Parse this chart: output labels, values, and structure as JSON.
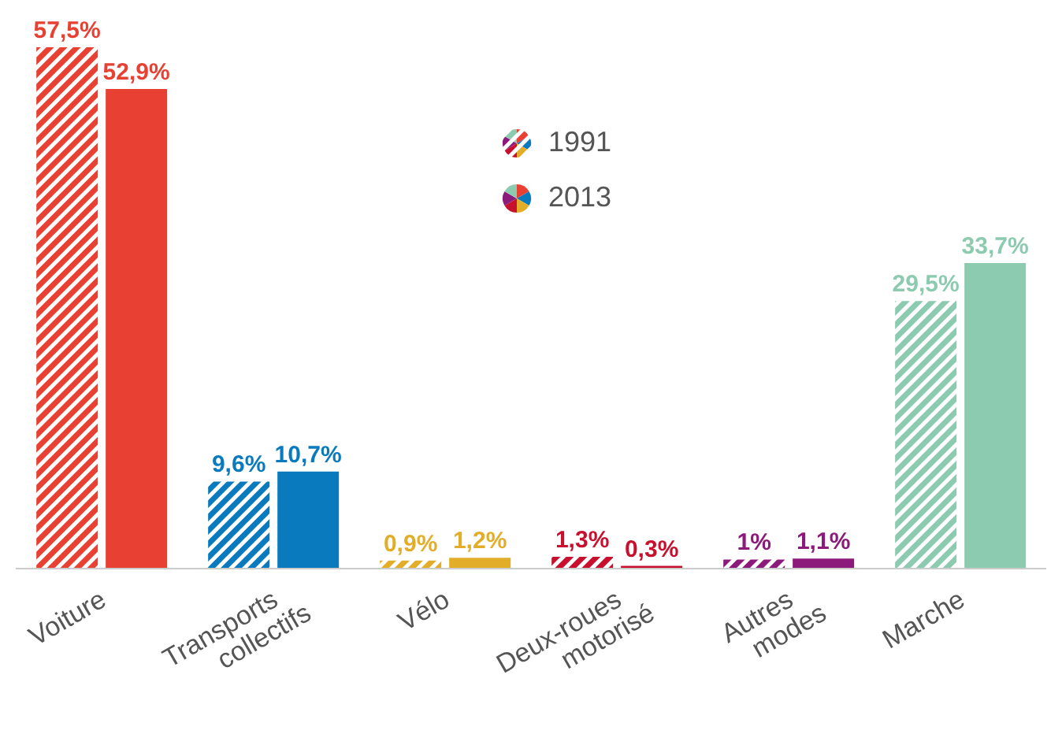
{
  "chart_data": {
    "type": "bar",
    "categories": [
      "Voiture",
      "Transports collectifs",
      "Vélo",
      "Deux-roues motorisé",
      "Autres modes",
      "Marche"
    ],
    "series": [
      {
        "name": "1991",
        "colors": [
          "#e84133",
          "#0a7abf",
          "#e2ae2a",
          "#c8102e",
          "#8b1a7a",
          "#8ccbb0"
        ],
        "values": [
          57.5,
          9.6,
          0.9,
          1.3,
          1,
          29.5
        ],
        "value_labels": [
          "57,5%",
          "9,6%",
          "0,9%",
          "1,3%",
          "1%",
          "29,5%"
        ]
      },
      {
        "name": "2013",
        "colors": [
          "#e84133",
          "#0a7abf",
          "#e2ae2a",
          "#c8102e",
          "#8b1a7a",
          "#8ccbb0"
        ],
        "values": [
          52.9,
          10.7,
          1.2,
          0.3,
          1.1,
          33.7
        ],
        "value_labels": [
          "52,9%",
          "10,7%",
          "1,2%",
          "0,3%",
          "1,1%",
          "33,7%"
        ]
      }
    ],
    "legend": "top",
    "grid": false
  }
}
